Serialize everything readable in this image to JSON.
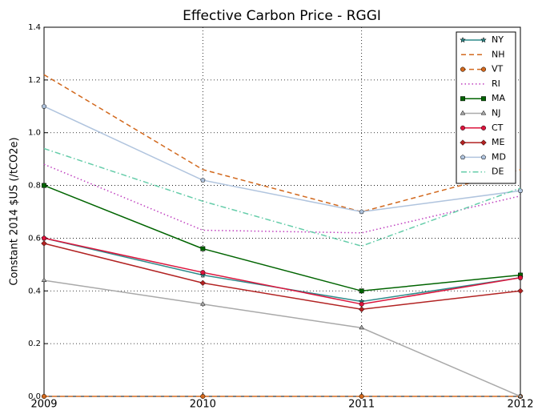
{
  "chart_data": {
    "type": "line",
    "title": "Effective Carbon Price - RGGI",
    "y_label": "Constant 2014 $US (/tCO2e)",
    "x": [
      2009,
      2010,
      2011,
      2012
    ],
    "xlim": [
      2009,
      2012
    ],
    "xticks": [
      2009,
      2010,
      2011,
      2012
    ],
    "ylim": [
      0,
      1.4
    ],
    "yticks": [
      {
        "value": 0,
        "label": "0.0"
      },
      0.2,
      0.4,
      0.6,
      0.8,
      {
        "value": 1,
        "label": "1.0"
      },
      1.2,
      1.4
    ],
    "grid": true,
    "legend": "upper right",
    "series": [
      {
        "name": "NY",
        "color": "#2e8b8b",
        "dash": "solid",
        "marker": "star",
        "values": [
          0.6,
          0.46,
          0.36,
          0.45
        ]
      },
      {
        "name": "NH",
        "color": "#d2691e",
        "dash": "dashed",
        "marker": "none",
        "values": [
          1.22,
          0.86,
          0.7,
          0.86
        ]
      },
      {
        "name": "VT",
        "color": "#d2691e",
        "dash": "dashed",
        "marker": "circle",
        "values": [
          0,
          0,
          0,
          0
        ]
      },
      {
        "name": "RI",
        "color": "#bf3fbf",
        "dash": "dotted",
        "marker": "none",
        "values": [
          0.88,
          0.63,
          0.62,
          0.76
        ]
      },
      {
        "name": "MA",
        "color": "#006400",
        "dash": "solid",
        "marker": "square",
        "values": [
          0.8,
          0.56,
          0.4,
          0.46
        ]
      },
      {
        "name": "NJ",
        "color": "#a9a9a9",
        "dash": "solid",
        "marker": "triangle",
        "values": [
          0.44,
          0.35,
          0.26,
          0
        ]
      },
      {
        "name": "CT",
        "color": "#dc143c",
        "dash": "solid",
        "marker": "circle",
        "values": [
          0.6,
          0.47,
          0.35,
          0.45
        ]
      },
      {
        "name": "ME",
        "color": "#b22222",
        "dash": "solid",
        "marker": "diamond",
        "values": [
          0.58,
          0.43,
          0.33,
          0.4
        ]
      },
      {
        "name": "MD",
        "color": "#b0c4de",
        "dash": "solid",
        "marker": "pentagon",
        "values": [
          1.1,
          0.82,
          0.7,
          0.78
        ]
      },
      {
        "name": "DE",
        "color": "#66cdaa",
        "dash": "dashdot",
        "marker": "none",
        "values": [
          0.94,
          0.74,
          0.57,
          0.79
        ]
      }
    ]
  }
}
